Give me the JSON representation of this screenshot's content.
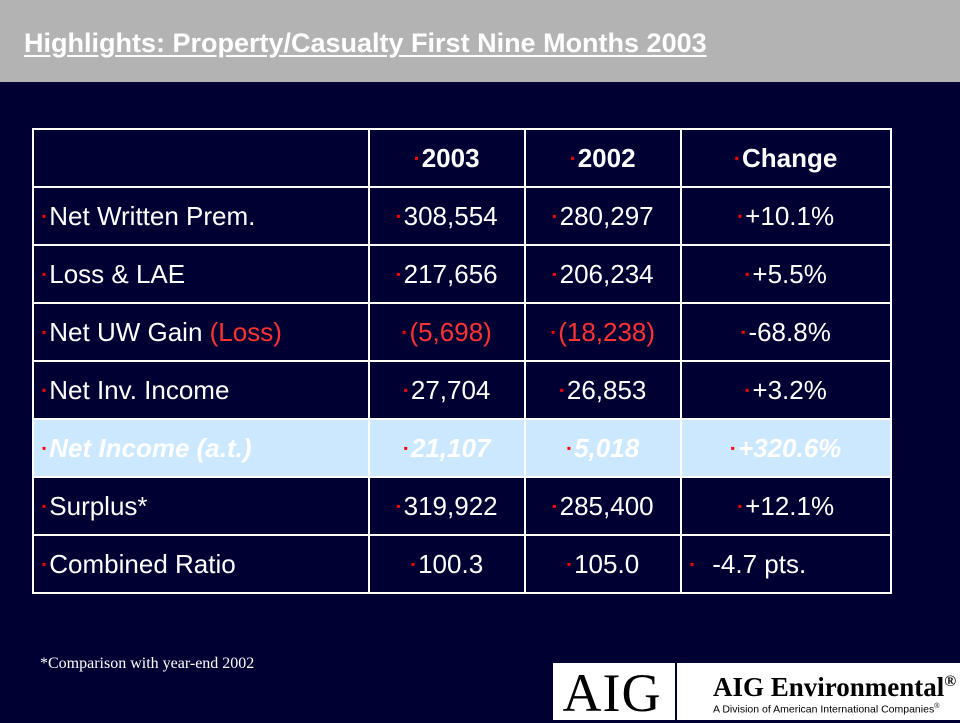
{
  "title": "Highlights: Property/Casualty First Nine Months 2003",
  "bullet_glyph": "▪",
  "table": {
    "headers": [
      "",
      "2003",
      "2002",
      "Change"
    ],
    "rows": [
      {
        "label": "Net Written Prem.",
        "v2003": "308,554",
        "v2002": "280,297",
        "change": "+10.1%"
      },
      {
        "label": "Loss & LAE",
        "v2003": "217,656",
        "v2002": "206,234",
        "change": "+5.5%"
      },
      {
        "label": "Net UW Gain ",
        "label_suffix": "(Loss)",
        "v2003": "(5,698)",
        "v2002": "(18,238)",
        "change": "-68.8%"
      },
      {
        "label": "Net Inv. Income",
        "v2003": "27,704",
        "v2002": "26,853",
        "change": "+3.2%"
      },
      {
        "label": "Net Income (a.t.)",
        "v2003": "21,107",
        "v2002": "5,018",
        "change": "+320.6%"
      },
      {
        "label": "Surplus*",
        "v2003": "319,922",
        "v2002": "285,400",
        "change": "+12.1%"
      },
      {
        "label": "Combined Ratio",
        "v2003": "100.3",
        "v2002": "105.0",
        "change": "-4.7 pts."
      }
    ]
  },
  "footnote": "*Comparison with year-end 2002",
  "logos": {
    "aig": "AIG",
    "division_name": "AIG Environmental",
    "division_mark": "®",
    "division_sub": "A Division of American International Companies",
    "division_sub_mark": "®"
  },
  "colors": {
    "background": "#000033",
    "title_bar": "#b3b3b3",
    "bullet": "#ff0000",
    "loss_text": "#ff3333",
    "highlight_row": "#cce8ff"
  }
}
